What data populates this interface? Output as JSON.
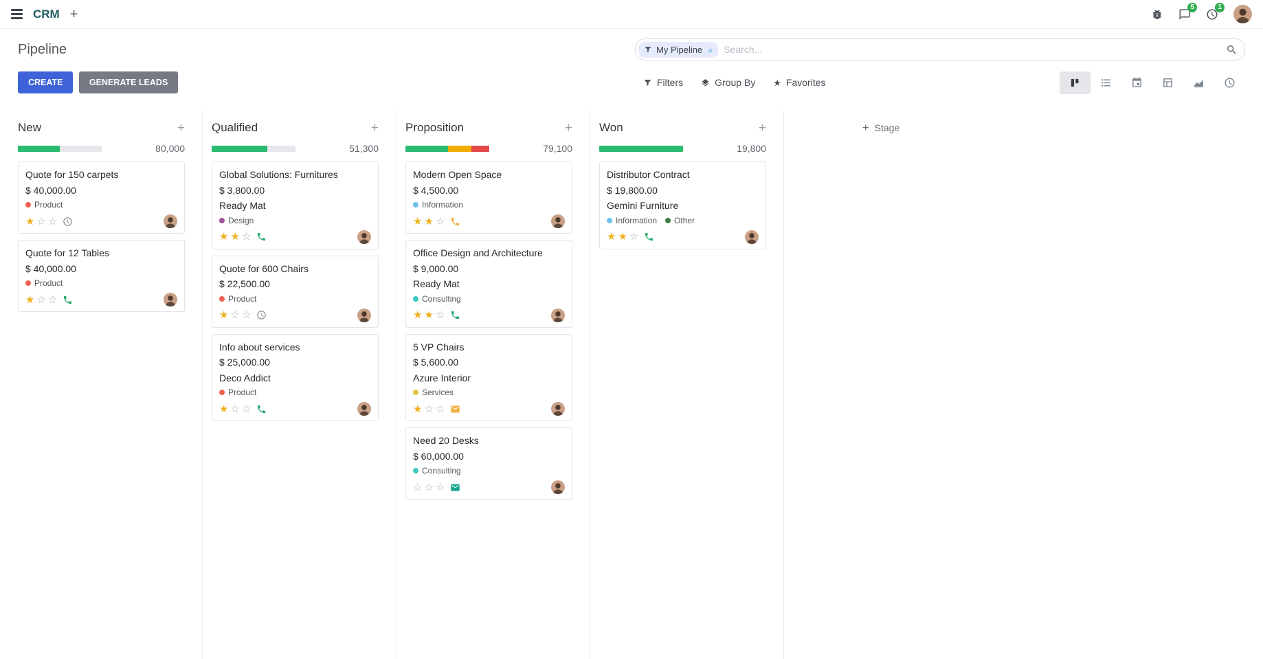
{
  "colors": {
    "accent": "#3e63d8",
    "secondary_button": "#757a85",
    "progress_success": "#2abb70",
    "progress_warning": "#f0ad00",
    "progress_danger": "#e5484d",
    "badge_green": "#2fae52",
    "star_gold": "#f0b01e"
  },
  "navbar": {
    "app_name": "CRM",
    "message_badge": "5",
    "activity_badge": "1"
  },
  "control_panel": {
    "title": "Pipeline",
    "create_label": "CREATE",
    "generate_leads_label": "GENERATE LEADS",
    "filters_label": "Filters",
    "group_by_label": "Group By",
    "favorites_label": "Favorites",
    "search": {
      "facet_label": "My Pipeline",
      "placeholder": "Search..."
    }
  },
  "board": {
    "add_stage_label": "Stage",
    "columns": [
      {
        "name": "New",
        "total": "80,000",
        "progress": [
          {
            "color": "#2abb70",
            "pct": 50
          }
        ],
        "cards": [
          {
            "title": "Quote for 150 carpets",
            "amount": "$ 40,000.00",
            "partner": "",
            "tags": [
              {
                "label": "Product",
                "color": "#f06050"
              }
            ],
            "stars": 1,
            "activity": {
              "icon": "clock",
              "color": "#8a9097"
            }
          },
          {
            "title": "Quote for 12 Tables",
            "amount": "$ 40,000.00",
            "partner": "",
            "tags": [
              {
                "label": "Product",
                "color": "#f06050"
              }
            ],
            "stars": 1,
            "activity": {
              "icon": "phone",
              "color": "#27ab6e"
            }
          }
        ]
      },
      {
        "name": "Qualified",
        "total": "51,300",
        "progress": [
          {
            "color": "#2abb70",
            "pct": 66
          }
        ],
        "cards": [
          {
            "title": "Global Solutions: Furnitures",
            "amount": "$ 3,800.00",
            "partner": "Ready Mat",
            "tags": [
              {
                "label": "Design",
                "color": "#a0529c"
              }
            ],
            "stars": 2,
            "activity": {
              "icon": "phone",
              "color": "#27ab6e"
            }
          },
          {
            "title": "Quote for 600 Chairs",
            "amount": "$ 22,500.00",
            "partner": "",
            "tags": [
              {
                "label": "Product",
                "color": "#f06050"
              }
            ],
            "stars": 1,
            "activity": {
              "icon": "clock",
              "color": "#8a9097"
            }
          },
          {
            "title": "Info about services",
            "amount": "$ 25,000.00",
            "partner": "Deco Addict",
            "tags": [
              {
                "label": "Product",
                "color": "#f06050"
              }
            ],
            "stars": 1,
            "activity": {
              "icon": "phone",
              "color": "#27ab6e"
            }
          }
        ]
      },
      {
        "name": "Proposition",
        "total": "79,100",
        "progress": [
          {
            "color": "#2abb70",
            "pct": 51
          },
          {
            "color": "#f0ad00",
            "pct": 28
          },
          {
            "color": "#e5484d",
            "pct": 21
          }
        ],
        "cards": [
          {
            "title": "Modern Open Space",
            "amount": "$ 4,500.00",
            "partner": "",
            "tags": [
              {
                "label": "Information",
                "color": "#6cc1ed"
              }
            ],
            "stars": 2,
            "activity": {
              "icon": "phone",
              "color": "#efb041"
            }
          },
          {
            "title": "Office Design and Architecture",
            "amount": "$ 9,000.00",
            "partner": "Ready Mat",
            "tags": [
              {
                "label": "Consulting",
                "color": "#3bc8c0"
              }
            ],
            "stars": 2,
            "activity": {
              "icon": "phone",
              "color": "#27ab6e"
            }
          },
          {
            "title": "5 VP Chairs",
            "amount": "$ 5,600.00",
            "partner": "Azure Interior",
            "tags": [
              {
                "label": "Services",
                "color": "#e4c441"
              }
            ],
            "stars": 1,
            "activity": {
              "icon": "mail",
              "color": "#efb041"
            }
          },
          {
            "title": "Need 20 Desks",
            "amount": "$ 60,000.00",
            "partner": "",
            "tags": [
              {
                "label": "Consulting",
                "color": "#3bc8c0"
              }
            ],
            "stars": 0,
            "activity": {
              "icon": "mail",
              "color": "#18a689"
            }
          }
        ]
      },
      {
        "name": "Won",
        "total": "19,800",
        "progress": [
          {
            "color": "#2abb70",
            "pct": 100
          }
        ],
        "cards": [
          {
            "title": "Distributor Contract",
            "amount": "$ 19,800.00",
            "partner": "Gemini Furniture",
            "tags": [
              {
                "label": "Information",
                "color": "#6cc1ed"
              },
              {
                "label": "Other",
                "color": "#407e46"
              }
            ],
            "stars": 2,
            "activity": {
              "icon": "phone",
              "color": "#27ab6e"
            }
          }
        ]
      }
    ]
  }
}
